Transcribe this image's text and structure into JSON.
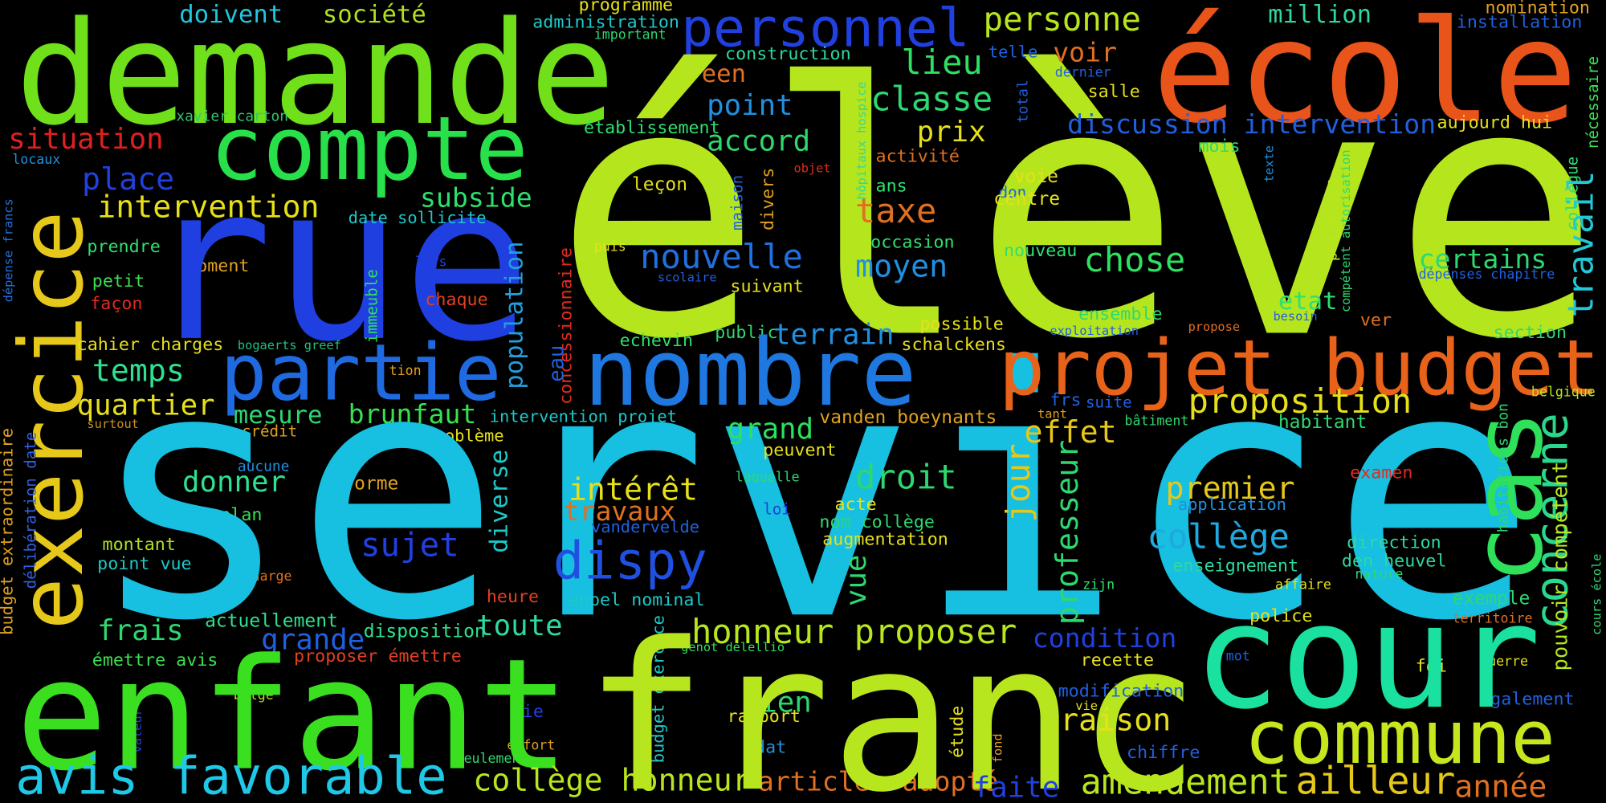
{
  "words": [
    "doivent",
    "société",
    "demande",
    "situation",
    "locaux",
    "xavier carton",
    "place",
    "intervention",
    "compte",
    "exercice",
    "dépense francs",
    "prendre",
    "petit",
    "moment",
    "façon",
    "rue",
    "subside",
    "date sollicite",
    "population",
    "concessionnaire",
    "eau",
    "immeuble",
    "chaque",
    "lors",
    "cahier charges",
    "bogaerts greef",
    "temps",
    "quartier",
    "partie",
    "tion",
    "surtout",
    "mesure",
    "brunfaut",
    "crédit",
    "problème",
    "intervention projet",
    "budget extraordinaire",
    "délibération date",
    "aucune",
    "donner",
    "forme",
    "plan",
    "montant",
    "point vue",
    "sujet",
    "diverse",
    "charge",
    "heure",
    "frais",
    "actuellement",
    "grande",
    "disposition",
    "toute",
    "émettre avis",
    "proposer émettre",
    "belge",
    "die",
    "valeur",
    "effort",
    "seulement",
    "enfant",
    "avis favorable",
    "collège honneur",
    "programme",
    "administration",
    "important",
    "personnel",
    "élève",
    "construction",
    "een",
    "point",
    "établissement",
    "accord",
    "objet",
    "divers",
    "maison",
    "leçon",
    "puis",
    "scolaire",
    "nouvelle",
    "suivant",
    "hôpitaux hospice",
    "lieu",
    "classe",
    "prix",
    "activité",
    "ans",
    "taxe",
    "occasion",
    "moyen",
    "public",
    "echevin",
    "terrain",
    "possible",
    "schalckens",
    "nombre",
    "service",
    "vanden boeynants",
    "grand",
    "effet",
    "peuvent",
    "droit",
    "jour",
    "laquelle",
    "intérêt",
    "travaux",
    "loi",
    "acte",
    "nom collège",
    "augmentation",
    "vandervelde",
    "vue",
    "appel nominal",
    "dispy",
    "budget exercice",
    "genot delellio",
    "honneur proposer",
    "rien",
    "rapport",
    "dat",
    "étude",
    "fond",
    "articles adopté",
    "franc",
    "faite",
    "professeur",
    "nomination",
    "installation",
    "école",
    "million",
    "personne",
    "telle",
    "voir",
    "total",
    "dernier",
    "salle",
    "discussion intervention",
    "aujourd hui",
    "nécessaire",
    "mois",
    "texte",
    "don",
    "voie",
    "centre",
    "nouveau",
    "politique",
    "compétent autorisation",
    "collègue",
    "travail",
    "dépenses chapitre",
    "chose",
    "certains",
    "etat",
    "ensemble",
    "exploitation",
    "propose",
    "besoin",
    "ver",
    "section",
    "projet budget",
    "frs",
    "suite",
    "tant",
    "proposition",
    "belgique",
    "bâtiment",
    "habitant",
    "cas",
    "concerne",
    "examen",
    "premier",
    "application",
    "habitations bon",
    "pouvoir compétent",
    "collège",
    "direction",
    "den heuvel",
    "enseignement",
    "affaire",
    "zijn",
    "nature",
    "exemple",
    "police",
    "territoire",
    "condition",
    "recette",
    "mot",
    "foi",
    "guerre",
    "cours école",
    "modification",
    "vie",
    "raison",
    "également",
    "cour",
    "commune",
    "chiffre",
    "amendement",
    "ailleur",
    "année"
  ]
}
